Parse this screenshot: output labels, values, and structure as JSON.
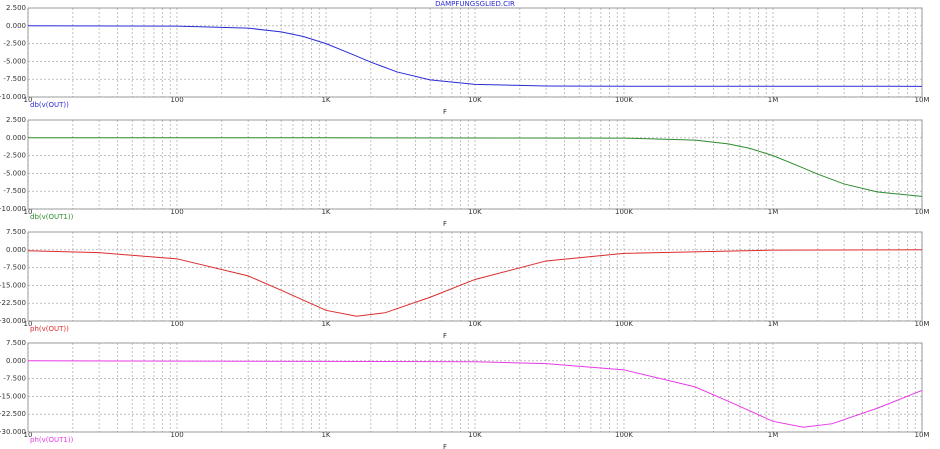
{
  "chart_data": [
    {
      "type": "line",
      "title": "DÄMPFUNGSGLIED.CIR",
      "x_label": "F",
      "log_x": true,
      "grid": true,
      "xlim": [
        10,
        10000000
      ],
      "xticks": [
        10,
        100,
        {
          "value": 1000,
          "label": "1K"
        },
        {
          "value": 10000,
          "label": "10K"
        },
        {
          "value": 100000,
          "label": "100K"
        },
        {
          "value": 1000000,
          "label": "1M"
        },
        {
          "value": 10000000,
          "label": "10M"
        }
      ],
      "ylim": [
        -10,
        2.5
      ],
      "yticks": [
        {
          "value": 2.5,
          "label": "2.500"
        },
        {
          "value": 0,
          "label": "0.000"
        },
        {
          "value": -2.5,
          "label": "-2.500"
        },
        {
          "value": -5,
          "label": "-5.000"
        },
        {
          "value": -7.5,
          "label": "-7.500"
        },
        {
          "value": -10,
          "label": "-10.000"
        }
      ],
      "x": [
        10,
        100,
        300,
        500,
        700,
        1000,
        1500,
        2000,
        3000,
        5000,
        10000,
        30000,
        100000,
        10000000
      ],
      "series": [
        {
          "name": "db(v(OUT))",
          "color": "#2b2bd6",
          "values": [
            0,
            -0.04,
            -0.33,
            -0.85,
            -1.49,
            -2.5,
            -4.0,
            -5.11,
            -6.48,
            -7.6,
            -8.23,
            -8.45,
            -8.49,
            -8.5
          ]
        }
      ]
    },
    {
      "type": "line",
      "x_label": "F",
      "log_x": true,
      "grid": true,
      "xlim": [
        10,
        10000000
      ],
      "xticks": [
        10,
        100,
        {
          "value": 1000,
          "label": "1K"
        },
        {
          "value": 10000,
          "label": "10K"
        },
        {
          "value": 100000,
          "label": "100K"
        },
        {
          "value": 1000000,
          "label": "1M"
        },
        {
          "value": 10000000,
          "label": "10M"
        }
      ],
      "ylim": [
        -10,
        2.5
      ],
      "yticks": [
        {
          "value": 2.5,
          "label": "2.500"
        },
        {
          "value": 0,
          "label": "0.000"
        },
        {
          "value": -2.5,
          "label": "-2.500"
        },
        {
          "value": -5,
          "label": "-5.000"
        },
        {
          "value": -7.5,
          "label": "-7.500"
        },
        {
          "value": -10,
          "label": "-10.000"
        }
      ],
      "x": [
        10,
        1000,
        100000,
        300000,
        500000,
        700000,
        1000000,
        1500000,
        2000000,
        3000000,
        5000000,
        10000000
      ],
      "series": [
        {
          "name": "db(v(OUT1))",
          "color": "#2e8b2e",
          "values": [
            0,
            0,
            -0.04,
            -0.33,
            -0.85,
            -1.49,
            -2.5,
            -4.0,
            -5.11,
            -6.48,
            -7.6,
            -8.23
          ]
        }
      ]
    },
    {
      "type": "line",
      "x_label": "F",
      "log_x": true,
      "grid": true,
      "xlim": [
        10,
        10000000
      ],
      "xticks": [
        10,
        100,
        {
          "value": 1000,
          "label": "1K"
        },
        {
          "value": 10000,
          "label": "10K"
        },
        {
          "value": 100000,
          "label": "100K"
        },
        {
          "value": 1000000,
          "label": "1M"
        },
        {
          "value": 10000000,
          "label": "10M"
        }
      ],
      "ylim": [
        -30,
        7.5
      ],
      "yticks": [
        {
          "value": 7.5,
          "label": "7.500"
        },
        {
          "value": 0,
          "label": "0.000"
        },
        {
          "value": -7.5,
          "label": "-7.500"
        },
        {
          "value": -15,
          "label": "-15.000"
        },
        {
          "value": -22.5,
          "label": "-22.500"
        },
        {
          "value": -30,
          "label": "-30.000"
        }
      ],
      "x": [
        10,
        30,
        100,
        300,
        500,
        1000,
        1600,
        2500,
        5000,
        10000,
        30000,
        100000,
        1000000,
        10000000
      ],
      "series": [
        {
          "name": "ph(v(OUT))",
          "color": "#dd2a2a",
          "values": [
            -0.4,
            -1.2,
            -3.8,
            -11,
            -17,
            -25.5,
            -28,
            -26.5,
            -20,
            -12.5,
            -4.7,
            -1.5,
            -0.15,
            0
          ]
        }
      ]
    },
    {
      "type": "line",
      "x_label": "F",
      "log_x": true,
      "grid": true,
      "xlim": [
        10,
        10000000
      ],
      "xticks": [
        10,
        100,
        {
          "value": 1000,
          "label": "1K"
        },
        {
          "value": 10000,
          "label": "10K"
        },
        {
          "value": 100000,
          "label": "100K"
        },
        {
          "value": 1000000,
          "label": "1M"
        },
        {
          "value": 10000000,
          "label": "10M"
        }
      ],
      "ylim": [
        -30,
        7.5
      ],
      "yticks": [
        {
          "value": 7.5,
          "label": "7.500"
        },
        {
          "value": 0,
          "label": "0.000"
        },
        {
          "value": -7.5,
          "label": "-7.500"
        },
        {
          "value": -15,
          "label": "-15.000"
        },
        {
          "value": -22.5,
          "label": "-22.500"
        },
        {
          "value": -30,
          "label": "-30.000"
        }
      ],
      "x": [
        10,
        10000,
        30000,
        100000,
        300000,
        500000,
        1000000,
        1600000,
        2500000,
        5000000,
        10000000
      ],
      "series": [
        {
          "name": "ph(v(OUT1))",
          "color": "#e83ae8",
          "values": [
            0,
            -0.4,
            -1.2,
            -3.8,
            -11,
            -17,
            -25.5,
            -28,
            -26.5,
            -20,
            -12.5
          ]
        }
      ]
    }
  ]
}
